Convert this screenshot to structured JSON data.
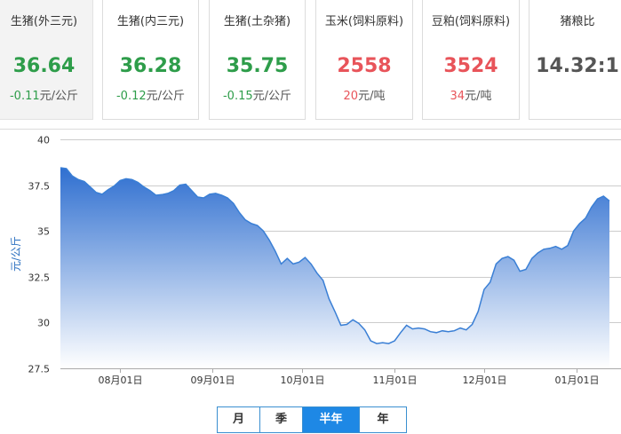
{
  "cards": [
    {
      "title": "生猪(外三元)",
      "price": "36.64",
      "change": "-0.11",
      "unit": "元/公斤",
      "tone": "green"
    },
    {
      "title": "生猪(内三元)",
      "price": "36.28",
      "change": "-0.12",
      "unit": "元/公斤",
      "tone": "green"
    },
    {
      "title": "生猪(土杂猪)",
      "price": "35.75",
      "change": "-0.15",
      "unit": "元/公斤",
      "tone": "green"
    },
    {
      "title": "玉米(饲料原料)",
      "price": "2558",
      "change": "20",
      "unit": "元/吨",
      "tone": "red"
    },
    {
      "title": "豆粕(饲料原料)",
      "price": "3524",
      "change": "34",
      "unit": "元/吨",
      "tone": "red"
    },
    {
      "title": "猪粮比",
      "price": "14.32:1",
      "tone": "gray"
    }
  ],
  "colors": {
    "green": "#2e9d4a",
    "red": "#e8545a",
    "line": "#3a7fd5",
    "accent": "#1e88e5"
  },
  "tabs": [
    {
      "label": "月",
      "active": false
    },
    {
      "label": "季",
      "active": false
    },
    {
      "label": "半年",
      "active": true
    },
    {
      "label": "年",
      "active": false
    }
  ],
  "chart_data": {
    "type": "area",
    "ylabel": "元/公斤",
    "ylim": [
      27.5,
      40
    ],
    "yticks": [
      "40",
      "37.5",
      "35",
      "32.5",
      "30",
      "27.5"
    ],
    "grid": true,
    "xtick_labels": [
      {
        "label": "08月01日",
        "x": "2020-08-01"
      },
      {
        "label": "09月01日",
        "x": "2020-09-01"
      },
      {
        "label": "10月01日",
        "x": "2020-10-01"
      },
      {
        "label": "11月01日",
        "x": "2020-11-01"
      },
      {
        "label": "12月01日",
        "x": "2020-12-01"
      },
      {
        "label": "01月01日",
        "x": "2021-01-01"
      }
    ],
    "series": [
      {
        "x": [
          "2020-07-12",
          "2020-07-14",
          "2020-07-16",
          "2020-07-18",
          "2020-07-20",
          "2020-07-22",
          "2020-07-24",
          "2020-07-26",
          "2020-07-28",
          "2020-07-30",
          "2020-08-01",
          "2020-08-03",
          "2020-08-05",
          "2020-08-07",
          "2020-08-09",
          "2020-08-11",
          "2020-08-13",
          "2020-08-15",
          "2020-08-17",
          "2020-08-19",
          "2020-08-21",
          "2020-08-23",
          "2020-08-25",
          "2020-08-27",
          "2020-08-29",
          "2020-08-31",
          "2020-09-02",
          "2020-09-04",
          "2020-09-06",
          "2020-09-08",
          "2020-09-10",
          "2020-09-12",
          "2020-09-14",
          "2020-09-16",
          "2020-09-18",
          "2020-09-20",
          "2020-09-22",
          "2020-09-24",
          "2020-09-26",
          "2020-09-28",
          "2020-09-30",
          "2020-10-02",
          "2020-10-04",
          "2020-10-06",
          "2020-10-08",
          "2020-10-10",
          "2020-10-12",
          "2020-10-14",
          "2020-10-16",
          "2020-10-18",
          "2020-10-20",
          "2020-10-22",
          "2020-10-24",
          "2020-10-26",
          "2020-10-28",
          "2020-10-30",
          "2020-11-01",
          "2020-11-03",
          "2020-11-05",
          "2020-11-07",
          "2020-11-09",
          "2020-11-11",
          "2020-11-13",
          "2020-11-15",
          "2020-11-17",
          "2020-11-19",
          "2020-11-21",
          "2020-11-23",
          "2020-11-25",
          "2020-11-27",
          "2020-11-29",
          "2020-12-01",
          "2020-12-03",
          "2020-12-05",
          "2020-12-07",
          "2020-12-09",
          "2020-12-11",
          "2020-12-13",
          "2020-12-15",
          "2020-12-17",
          "2020-12-19",
          "2020-12-21",
          "2020-12-23",
          "2020-12-25",
          "2020-12-27",
          "2020-12-29",
          "2020-12-31",
          "2021-01-02",
          "2021-01-04",
          "2021-01-06",
          "2021-01-08",
          "2021-01-10",
          "2021-01-12"
        ],
        "values": [
          38.45,
          38.4,
          38.0,
          37.8,
          37.7,
          37.4,
          37.1,
          37.0,
          37.25,
          37.45,
          37.75,
          37.85,
          37.8,
          37.65,
          37.4,
          37.2,
          36.95,
          36.98,
          37.05,
          37.2,
          37.5,
          37.55,
          37.2,
          36.85,
          36.8,
          37.0,
          37.05,
          36.95,
          36.8,
          36.5,
          36.0,
          35.6,
          35.4,
          35.3,
          35.0,
          34.5,
          33.9,
          33.2,
          33.5,
          33.2,
          33.3,
          33.55,
          33.2,
          32.7,
          32.3,
          31.3,
          30.6,
          29.85,
          29.9,
          30.15,
          29.95,
          29.6,
          29.0,
          28.85,
          28.9,
          28.85,
          29.0,
          29.45,
          29.85,
          29.65,
          29.7,
          29.65,
          29.5,
          29.45,
          29.55,
          29.5,
          29.55,
          29.7,
          29.6,
          29.9,
          30.6,
          31.8,
          32.2,
          33.2,
          33.5,
          33.6,
          33.4,
          32.8,
          32.9,
          33.5,
          33.8,
          34.0,
          34.05,
          34.15,
          34.0,
          34.2,
          35.0,
          35.4,
          35.7,
          36.3,
          36.75,
          36.9,
          36.64
        ]
      }
    ]
  }
}
